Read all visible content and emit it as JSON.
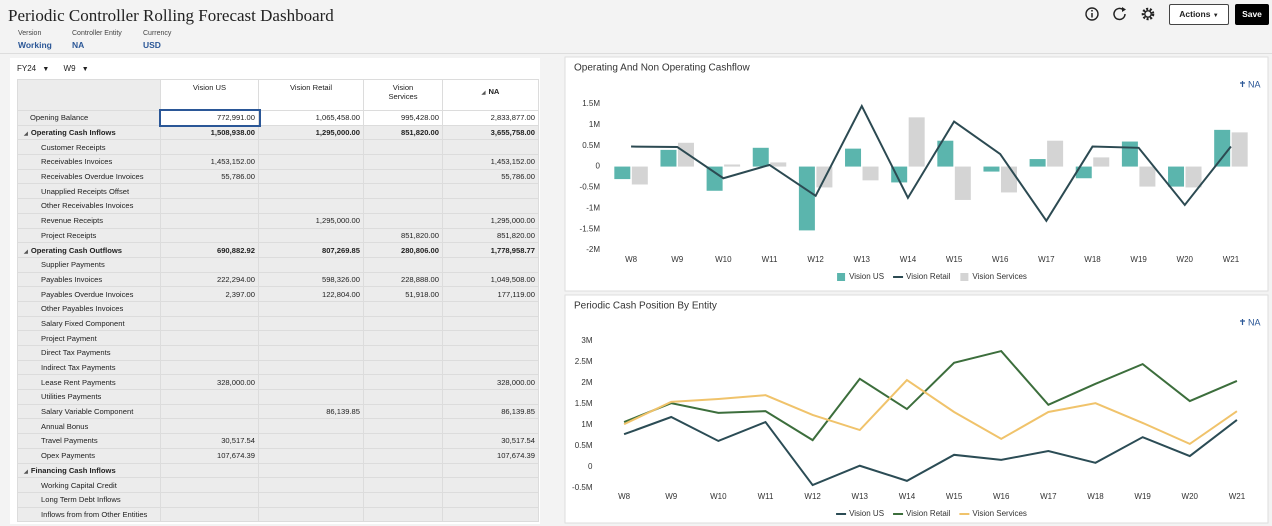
{
  "header": {
    "title": "Periodic Controller Rolling Forecast Dashboard",
    "pov": [
      {
        "label": "Version",
        "value": "Working"
      },
      {
        "label": "Controller Entity",
        "value": "NA"
      },
      {
        "label": "Currency",
        "value": "USD"
      }
    ],
    "actions": "Actions",
    "save": "Save"
  },
  "grid_pov": [
    "FY24",
    "W9"
  ],
  "table": {
    "columns": [
      "Vision US",
      "Vision Retail",
      "Vision Services",
      "NA"
    ],
    "rows": [
      {
        "label": "Opening Balance",
        "level": 0,
        "cells": [
          "772,991.00",
          "1,065,458.00",
          "995,428.00",
          "2,833,877.00"
        ]
      },
      {
        "label": "Operating Cash Inflows",
        "level": 1,
        "cells": [
          "1,508,938.00",
          "1,295,000.00",
          "851,820.00",
          "3,655,758.00"
        ]
      },
      {
        "label": "Customer Receipts",
        "level": 2,
        "cells": [
          null,
          null,
          null,
          null
        ]
      },
      {
        "label": "Receivables Invoices",
        "level": 2,
        "cells": [
          "1,453,152.00",
          null,
          null,
          "1,453,152.00"
        ]
      },
      {
        "label": "Receivables Overdue Invoices",
        "level": 2,
        "cells": [
          "55,786.00",
          null,
          null,
          "55,786.00"
        ]
      },
      {
        "label": "Unapplied Receipts Offset",
        "level": 2,
        "cells": [
          null,
          null,
          null,
          null
        ]
      },
      {
        "label": "Other Receivables Invoices",
        "level": 2,
        "cells": [
          null,
          null,
          null,
          null
        ]
      },
      {
        "label": "Revenue Receipts",
        "level": 2,
        "cells": [
          null,
          "1,295,000.00",
          null,
          "1,295,000.00"
        ]
      },
      {
        "label": "Project Receipts",
        "level": 2,
        "cells": [
          null,
          null,
          "851,820.00",
          "851,820.00"
        ]
      },
      {
        "label": "Operating Cash Outflows",
        "level": 1,
        "cells": [
          "690,882.92",
          "807,269.85",
          "280,806.00",
          "1,778,958.77"
        ]
      },
      {
        "label": "Supplier Payments",
        "level": 2,
        "cells": [
          null,
          null,
          null,
          null
        ]
      },
      {
        "label": "Payables Invoices",
        "level": 2,
        "cells": [
          "222,294.00",
          "598,326.00",
          "228,888.00",
          "1,049,508.00"
        ]
      },
      {
        "label": "Payables Overdue Invoices",
        "level": 2,
        "cells": [
          "2,397.00",
          "122,804.00",
          "51,918.00",
          "177,119.00"
        ]
      },
      {
        "label": "Other Payables Invoices",
        "level": 2,
        "cells": [
          null,
          null,
          null,
          null
        ]
      },
      {
        "label": "Salary Fixed  Component",
        "level": 2,
        "cells": [
          null,
          null,
          null,
          null
        ]
      },
      {
        "label": "Project Payment",
        "level": 2,
        "cells": [
          null,
          null,
          null,
          null
        ]
      },
      {
        "label": "Direct Tax Payments",
        "level": 2,
        "cells": [
          null,
          null,
          null,
          null
        ]
      },
      {
        "label": "Indirect Tax Payments",
        "level": 2,
        "cells": [
          null,
          null,
          null,
          null
        ]
      },
      {
        "label": "Lease Rent Payments",
        "level": 2,
        "cells": [
          "328,000.00",
          null,
          null,
          "328,000.00"
        ]
      },
      {
        "label": "Utilities Payments",
        "level": 2,
        "cells": [
          null,
          null,
          null,
          null
        ]
      },
      {
        "label": "Salary Variable Component",
        "level": 2,
        "cells": [
          null,
          "86,139.85",
          null,
          "86,139.85"
        ]
      },
      {
        "label": "Annual Bonus",
        "level": 2,
        "cells": [
          null,
          null,
          null,
          null
        ]
      },
      {
        "label": "Travel Payments",
        "level": 2,
        "cells": [
          "30,517.54",
          null,
          null,
          "30,517.54"
        ]
      },
      {
        "label": "Opex Payments",
        "level": 2,
        "cells": [
          "107,674.39",
          null,
          null,
          "107,674.39"
        ]
      },
      {
        "label": "Financing Cash Inflows",
        "level": 1,
        "cells": [
          null,
          null,
          null,
          null
        ]
      },
      {
        "label": "Working Capital Credit",
        "level": 2,
        "cells": [
          null,
          null,
          null,
          null
        ]
      },
      {
        "label": "Long Term Debt Inflows",
        "level": 2,
        "cells": [
          null,
          null,
          null,
          null
        ]
      },
      {
        "label": "Inflows from from Other Entities",
        "level": 2,
        "cells": [
          null,
          null,
          null,
          null
        ]
      }
    ]
  },
  "chart_data": [
    {
      "type": "bar",
      "title": "Operating And Non Operating Cashflow",
      "filter": "NA",
      "grid": false,
      "categories": [
        "W8",
        "W9",
        "W10",
        "W11",
        "W12",
        "W13",
        "W14",
        "W15",
        "W16",
        "W17",
        "W18",
        "W19",
        "W20",
        "W21"
      ],
      "ylim": [
        -2000000,
        1500000
      ],
      "yticks": [
        {
          "value": -2000000,
          "label": "-2M"
        },
        {
          "value": -1500000,
          "label": "-1.5M"
        },
        {
          "value": -1000000,
          "label": "-1M"
        },
        {
          "value": -500000,
          "label": "-0.5M"
        },
        0,
        {
          "value": 500000,
          "label": "0.5M"
        },
        {
          "value": 1000000,
          "label": "1M"
        },
        {
          "value": 1500000,
          "label": "1.5M"
        }
      ],
      "series": [
        {
          "name": "Vision US",
          "color": "#5bb5ad",
          "values": [
            -300000,
            400000,
            -580000,
            450000,
            -1530000,
            430000,
            -380000,
            620000,
            -120000,
            180000,
            -280000,
            600000,
            -480000,
            880000
          ]
        },
        {
          "name": "Vision Retail",
          "type": "line",
          "color": "#2c4a52",
          "values": [
            480000,
            470000,
            -280000,
            40000,
            -700000,
            1450000,
            -750000,
            1080000,
            300000,
            -1300000,
            480000,
            450000,
            -920000,
            480000
          ]
        },
        {
          "name": "Vision Services",
          "color": "#d4d4d4",
          "values": [
            -430000,
            570000,
            50000,
            100000,
            -500000,
            -330000,
            1180000,
            -800000,
            -620000,
            620000,
            220000,
            -480000,
            -500000,
            820000
          ]
        }
      ]
    },
    {
      "type": "line",
      "title": "Periodic Cash Position By Entity",
      "filter": "NA",
      "grid": false,
      "categories": [
        "W8",
        "W9",
        "W10",
        "W11",
        "W12",
        "W13",
        "W14",
        "W15",
        "W16",
        "W17",
        "W18",
        "W19",
        "W20",
        "W21"
      ],
      "ylim": [
        -500000,
        3000000
      ],
      "yticks": [
        {
          "value": -500000,
          "label": "-0.5M"
        },
        0,
        {
          "value": 500000,
          "label": "0.5M"
        },
        {
          "value": 1000000,
          "label": "1M"
        },
        {
          "value": 1500000,
          "label": "1.5M"
        },
        {
          "value": 2000000,
          "label": "2M"
        },
        {
          "value": 2500000,
          "label": "2.5M"
        },
        {
          "value": 3000000,
          "label": "3M"
        }
      ],
      "series": [
        {
          "name": "Vision US",
          "color": "#2b4c55",
          "values": [
            780000,
            1190000,
            620000,
            1070000,
            -430000,
            30000,
            -330000,
            290000,
            170000,
            380000,
            100000,
            710000,
            260000,
            1120000
          ]
        },
        {
          "name": "Vision Retail",
          "color": "#3c6e3c",
          "values": [
            1070000,
            1520000,
            1290000,
            1330000,
            640000,
            2100000,
            1380000,
            2480000,
            2760000,
            1480000,
            1980000,
            2450000,
            1570000,
            2050000
          ]
        },
        {
          "name": "Vision Services",
          "color": "#f0c36b",
          "values": [
            1020000,
            1550000,
            1620000,
            1710000,
            1240000,
            880000,
            2070000,
            1310000,
            670000,
            1310000,
            1520000,
            1050000,
            550000,
            1330000
          ]
        }
      ]
    }
  ]
}
